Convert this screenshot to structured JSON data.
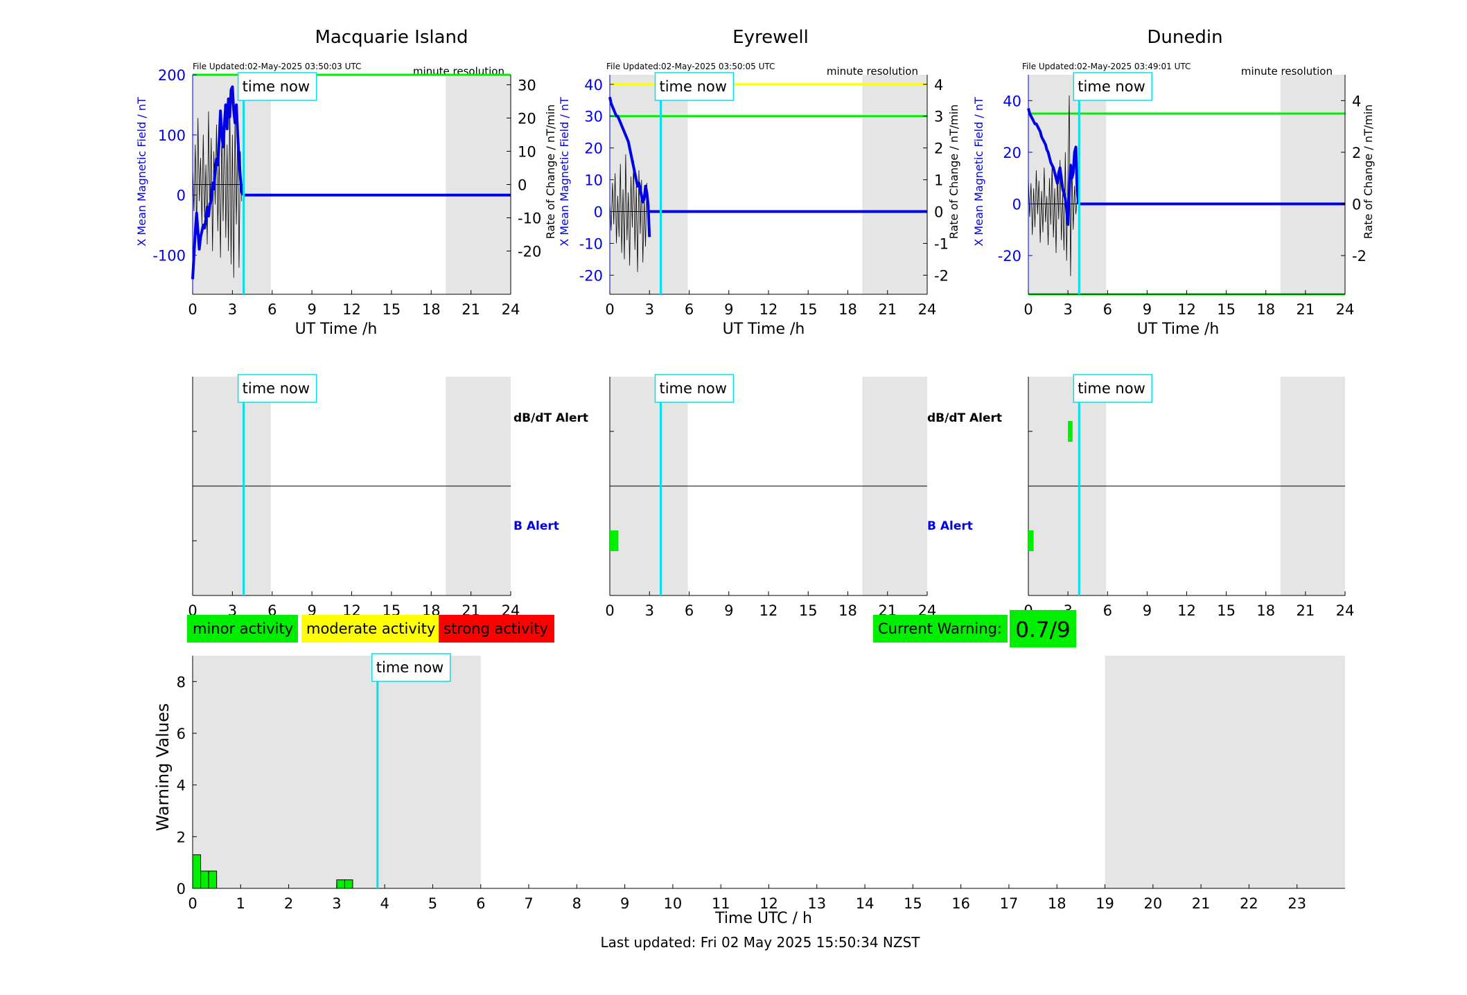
{
  "figure": {
    "footer": "Last updated: Fri 02 May 2025 15:50:34 NZST",
    "time_now_label": "time now",
    "time_now_hour": 3.85,
    "colors": {
      "night_shade": "#e5e5e5",
      "time_now": "#00e0ee",
      "x_field": "#0000e6",
      "rate": "#000000",
      "minor": "#00ee00",
      "moderate": "#ffff00",
      "strong": "#ff0000",
      "alert_line": "#000000"
    }
  },
  "legend": {
    "minor": "minor activity",
    "moderate": "moderate activity",
    "strong": "strong activity",
    "current_warning_label": "Current Warning:",
    "current_warning_value": "0.7/9"
  },
  "chart_data": [
    {
      "type": "line",
      "title": "Macquarie Island",
      "file_updated": "File Updated:02-May-2025 03:50:03 UTC",
      "resolution": "minute resolution",
      "xlabel": "UT Time /h",
      "ylabel_left": "X Mean Magnetic Field / nT",
      "ylabel_right": "Rate of Change / nT/min",
      "xlim": [
        0,
        24
      ],
      "xticks": [
        0,
        3,
        6,
        9,
        12,
        15,
        18,
        21,
        24
      ],
      "ylim_left": [
        -165,
        200
      ],
      "yticks_left": [
        -100,
        0,
        100,
        200
      ],
      "ylim_right": [
        -33,
        33
      ],
      "yticks_right": [
        -20,
        -10,
        0,
        10,
        20,
        30
      ],
      "night_shade": [
        [
          0,
          5.9
        ],
        [
          19.1,
          24
        ]
      ],
      "threshold_lines": [
        {
          "y_left": 200,
          "color": "#00ee00"
        }
      ],
      "series": [
        {
          "axis": "left",
          "color": "#0000e6",
          "x": [
            0,
            0.05,
            0.1,
            0.2,
            0.3,
            0.4,
            0.5,
            0.6,
            0.7,
            0.8,
            0.9,
            1.0,
            1.1,
            1.2,
            1.3,
            1.4,
            1.5,
            1.6,
            1.7,
            1.8,
            1.9,
            2.0,
            2.1,
            2.2,
            2.3,
            2.4,
            2.5,
            2.6,
            2.7,
            2.8,
            2.9,
            3.0,
            3.1,
            3.2,
            3.3,
            3.4,
            3.5,
            3.6,
            3.7,
            3.8
          ],
          "y": [
            -140,
            -120,
            -100,
            -60,
            -30,
            -60,
            -90,
            -70,
            -60,
            -50,
            -55,
            -40,
            -20,
            -35,
            -15,
            -10,
            20,
            10,
            40,
            60,
            50,
            90,
            140,
            100,
            80,
            120,
            150,
            110,
            160,
            130,
            175,
            180,
            140,
            120,
            150,
            100,
            60,
            30,
            5,
            0
          ]
        },
        {
          "axis": "left",
          "color": "#0000e6",
          "x": [
            3.8,
            24
          ],
          "y": [
            0,
            0
          ]
        }
      ],
      "rate_series": {
        "axis": "right",
        "color": "#000000",
        "x": [
          0.0,
          0.1,
          0.2,
          0.3,
          0.4,
          0.5,
          0.6,
          0.7,
          0.8,
          0.9,
          1.0,
          1.1,
          1.2,
          1.3,
          1.4,
          1.5,
          1.6,
          1.7,
          1.8,
          1.9,
          2.0,
          2.1,
          2.2,
          2.3,
          2.4,
          2.5,
          2.6,
          2.7,
          2.8,
          2.9,
          3.0,
          3.1,
          3.2,
          3.3,
          3.4,
          3.5,
          3.6,
          3.7
        ],
        "y": [
          5,
          -8,
          12,
          -15,
          20,
          -5,
          8,
          -12,
          15,
          -10,
          6,
          -18,
          22,
          -9,
          14,
          -20,
          10,
          -6,
          18,
          -14,
          9,
          -22,
          16,
          -11,
          24,
          -16,
          12,
          -20,
          26,
          -24,
          15,
          -28,
          20,
          -12,
          18,
          -25,
          10,
          -5
        ]
      }
    },
    {
      "type": "line",
      "title": "Eyrewell",
      "file_updated": "File Updated:02-May-2025 03:50:05 UTC",
      "resolution": "minute resolution",
      "xlabel": "UT Time /h",
      "ylabel_left": "X Mean Magnetic Field / nT",
      "ylabel_right": "Rate of Change / nT/min",
      "xlim": [
        0,
        24
      ],
      "xticks": [
        0,
        3,
        6,
        9,
        12,
        15,
        18,
        21,
        24
      ],
      "ylim_left": [
        -26,
        43
      ],
      "yticks_left": [
        -20,
        -10,
        0,
        10,
        20,
        30,
        40
      ],
      "ylim_right": [
        -2.6,
        4.3
      ],
      "yticks_right": [
        -2,
        -1,
        0,
        1,
        2,
        3,
        4
      ],
      "night_shade": [
        [
          0,
          5.9
        ],
        [
          19.1,
          24
        ]
      ],
      "threshold_lines": [
        {
          "y_left": 40,
          "color": "#ffff00"
        },
        {
          "y_left": 30,
          "color": "#00ee00"
        }
      ],
      "series": [
        {
          "axis": "left",
          "color": "#0000e6",
          "x": [
            0,
            0.1,
            0.2,
            0.3,
            0.4,
            0.5,
            0.6,
            0.7,
            0.8,
            0.9,
            1.0,
            1.1,
            1.2,
            1.3,
            1.4,
            1.5,
            1.6,
            1.7,
            1.8,
            1.9,
            2.0,
            2.1,
            2.2,
            2.3,
            2.4,
            2.5,
            2.6,
            2.7,
            2.8,
            2.9,
            3.0
          ],
          "y": [
            36,
            34,
            33,
            32,
            31,
            30,
            30,
            29,
            28,
            27,
            26,
            25,
            24,
            23,
            22,
            20,
            18,
            16,
            14,
            12,
            10,
            8,
            9,
            7,
            5,
            3,
            4,
            8,
            6,
            2,
            -8
          ]
        },
        {
          "axis": "left",
          "color": "#0000e6",
          "x": [
            3.0,
            24
          ],
          "y": [
            0,
            0
          ]
        }
      ],
      "rate_series": {
        "axis": "right",
        "color": "#000000",
        "x": [
          0.0,
          0.1,
          0.2,
          0.3,
          0.4,
          0.5,
          0.6,
          0.7,
          0.8,
          0.9,
          1.0,
          1.1,
          1.2,
          1.3,
          1.4,
          1.5,
          1.6,
          1.7,
          1.8,
          1.9,
          2.0,
          2.1,
          2.2,
          2.3,
          2.4,
          2.5,
          2.6,
          2.7,
          2.8,
          2.9
        ],
        "y": [
          0.3,
          -0.6,
          0.9,
          -0.4,
          1.2,
          -1.0,
          0.5,
          -0.8,
          1.5,
          -1.3,
          0.7,
          -1.5,
          1.8,
          -0.9,
          0.6,
          -1.7,
          1.1,
          -0.5,
          1.6,
          -1.2,
          0.8,
          -1.9,
          1.3,
          -0.7,
          1.0,
          -1.6,
          0.4,
          -1.1,
          0.9,
          -0.3
        ]
      }
    },
    {
      "type": "line",
      "title": "Dunedin",
      "file_updated": "File Updated:02-May-2025 03:49:01 UTC",
      "resolution": "minute resolution",
      "xlabel": "UT Time /h",
      "ylabel_left": "X Mean Magnetic Field / nT",
      "ylabel_right": "Rate of Change / nT/min",
      "xlim": [
        0,
        24
      ],
      "xticks": [
        0,
        3,
        6,
        9,
        12,
        15,
        18,
        21,
        24
      ],
      "ylim_left": [
        -35,
        50
      ],
      "yticks_left": [
        -20,
        0,
        20,
        40
      ],
      "ylim_right": [
        -3.5,
        5
      ],
      "yticks_right": [
        -2,
        0,
        2,
        4
      ],
      "night_shade": [
        [
          0,
          5.9
        ],
        [
          19.1,
          24
        ]
      ],
      "threshold_lines": [
        {
          "y_left": 35,
          "color": "#00ee00"
        },
        {
          "y_left": -35,
          "color": "#00ee00"
        }
      ],
      "series": [
        {
          "axis": "left",
          "color": "#0000e6",
          "x": [
            0,
            0.1,
            0.2,
            0.3,
            0.4,
            0.5,
            0.6,
            0.7,
            0.8,
            0.9,
            1.0,
            1.1,
            1.2,
            1.3,
            1.4,
            1.5,
            1.6,
            1.7,
            1.8,
            1.9,
            2.0,
            2.1,
            2.2,
            2.3,
            2.4,
            2.5,
            2.6,
            2.7,
            2.8,
            2.9,
            3.0,
            3.1,
            3.2,
            3.3,
            3.4,
            3.5,
            3.6,
            3.7,
            3.8
          ],
          "y": [
            37,
            35,
            34,
            33,
            32,
            31,
            31,
            30,
            29,
            28,
            26,
            25,
            24,
            23,
            21,
            20,
            18,
            16,
            15,
            14,
            12,
            10,
            8,
            12,
            14,
            10,
            6,
            4,
            2,
            -2,
            -8,
            5,
            15,
            10,
            12,
            20,
            22,
            5,
            0
          ]
        },
        {
          "axis": "left",
          "color": "#0000e6",
          "x": [
            3.8,
            24
          ],
          "y": [
            0,
            0
          ]
        }
      ],
      "rate_series": {
        "axis": "right",
        "color": "#000000",
        "x": [
          0.0,
          0.1,
          0.2,
          0.3,
          0.4,
          0.5,
          0.6,
          0.7,
          0.8,
          0.9,
          1.0,
          1.1,
          1.2,
          1.3,
          1.4,
          1.5,
          1.6,
          1.7,
          1.8,
          1.9,
          2.0,
          2.1,
          2.2,
          2.3,
          2.4,
          2.5,
          2.6,
          2.7,
          2.8,
          2.9,
          3.0,
          3.1,
          3.2,
          3.3,
          3.4,
          3.5,
          3.6,
          3.7
        ],
        "y": [
          1.0,
          -0.5,
          0.8,
          -1.2,
          0.6,
          -0.9,
          1.3,
          -0.4,
          0.9,
          -1.5,
          0.5,
          -1.1,
          1.4,
          -0.7,
          0.3,
          -1.6,
          1.0,
          -0.8,
          1.5,
          -1.3,
          0.6,
          -1.9,
          1.2,
          -0.6,
          1.7,
          -1.4,
          0.4,
          -1.8,
          2.0,
          -2.2,
          1.1,
          4.2,
          -2.8,
          1.5,
          -1.0,
          0.7,
          -0.4,
          0.2
        ]
      }
    },
    {
      "type": "bar",
      "subplot": "alerts",
      "station": "Macquarie Island",
      "xlim": [
        0,
        24
      ],
      "xticks": [
        0,
        3,
        6,
        9,
        12,
        15,
        18,
        21,
        24
      ],
      "row_labels": [
        "dB/dT Alert",
        "B Alert"
      ],
      "night_shade": [
        [
          0,
          5.9
        ],
        [
          19.1,
          24
        ]
      ],
      "dbdt_alerts": [],
      "b_alerts": []
    },
    {
      "type": "bar",
      "subplot": "alerts",
      "station": "Eyrewell",
      "xlim": [
        0,
        24
      ],
      "xticks": [
        0,
        3,
        6,
        9,
        12,
        15,
        18,
        21,
        24
      ],
      "row_labels": [
        "dB/dT Alert",
        "B Alert"
      ],
      "night_shade": [
        [
          0,
          5.9
        ],
        [
          19.1,
          24
        ]
      ],
      "dbdt_alerts": [],
      "b_alerts": [
        {
          "start": 0,
          "end": 0.65,
          "color": "#00ee00"
        }
      ]
    },
    {
      "type": "bar",
      "subplot": "alerts",
      "station": "Dunedin",
      "xlim": [
        0,
        24
      ],
      "xticks": [
        0,
        3,
        6,
        9,
        12,
        15,
        18,
        21,
        24
      ],
      "row_labels": [
        "dB/dT Alert",
        "B Alert"
      ],
      "night_shade": [
        [
          0,
          5.9
        ],
        [
          19.1,
          24
        ]
      ],
      "dbdt_alerts": [
        {
          "start": 3.0,
          "end": 3.35,
          "color": "#00ee00"
        }
      ],
      "b_alerts": [
        {
          "start": 0,
          "end": 0.4,
          "color": "#00ee00"
        }
      ]
    },
    {
      "type": "bar",
      "subplot": "warning",
      "xlabel": "Time UTC / h",
      "ylabel": "Warning Values",
      "xlim": [
        0,
        24
      ],
      "xticks": [
        0,
        1,
        2,
        3,
        4,
        5,
        6,
        7,
        8,
        9,
        10,
        11,
        12,
        13,
        14,
        15,
        16,
        17,
        18,
        19,
        20,
        21,
        22,
        23
      ],
      "ylim": [
        0,
        9
      ],
      "yticks": [
        0,
        2,
        4,
        6,
        8
      ],
      "night_shade": [
        [
          0,
          6
        ],
        [
          19,
          24
        ]
      ],
      "bars": [
        {
          "start": 0,
          "end": 0.167,
          "value": 1.3
        },
        {
          "start": 0.167,
          "end": 0.333,
          "value": 0.67
        },
        {
          "start": 0.333,
          "end": 0.5,
          "value": 0.67
        },
        {
          "start": 3.0,
          "end": 3.167,
          "value": 0.33
        },
        {
          "start": 3.167,
          "end": 3.333,
          "value": 0.33
        }
      ],
      "bar_color": "#00ee00"
    }
  ]
}
